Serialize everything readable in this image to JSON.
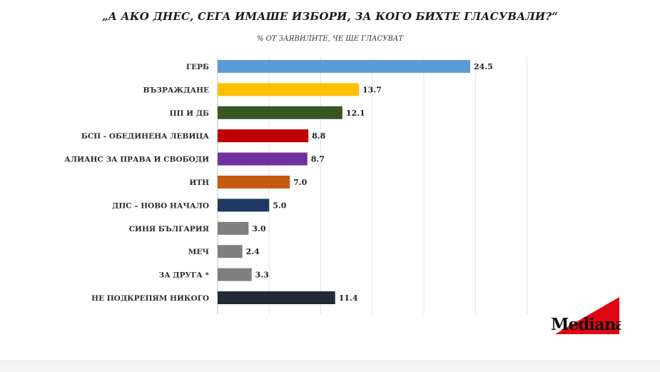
{
  "chart_data": {
    "type": "bar",
    "orientation": "horizontal",
    "title": "„А АКО ДНЕС, СЕГА ИМАШЕ ИЗБОРИ, ЗА КОГО БИХТЕ ГЛАСУВАЛИ?“",
    "subtitle": "% ОТ ЗАЯВИЛИТЕ, ЧЕ ЩЕ ГЛАСУВАТ",
    "categories": [
      "ГЕРБ",
      "ВЪЗРАЖДАНЕ",
      "ПП И ДБ",
      "БСП - ОБЕДИНЕНА ЛЕВИЦА",
      "АЛИАНС ЗА ПРАВА И СВОБОДИ",
      "ИТН",
      "ДПС – НОВО НАЧАЛО",
      "СИНЯ БЪЛГАРИЯ",
      "МЕЧ",
      "ЗА ДРУГА *",
      "НЕ ПОДКРЕПЯМ НИКОГО"
    ],
    "values": [
      24.5,
      13.7,
      12.1,
      8.8,
      8.7,
      7.0,
      5.0,
      3.0,
      2.4,
      3.3,
      11.4
    ],
    "value_labels": [
      "24.5",
      "13.7",
      "12.1",
      "8.8",
      "8.7",
      "7.0",
      "5.0",
      "3.0",
      "2.4",
      "3.3",
      "11.4"
    ],
    "colors": [
      "#5b9bd5",
      "#ffc000",
      "#375623",
      "#c00000",
      "#7030a0",
      "#c55a11",
      "#203864",
      "#7f7f7f",
      "#7f7f7f",
      "#7f7f7f",
      "#222a35"
    ],
    "xlim": [
      0,
      30
    ],
    "grid": true
  },
  "logo": {
    "text": "Mediana",
    "accent": "#e30613"
  }
}
